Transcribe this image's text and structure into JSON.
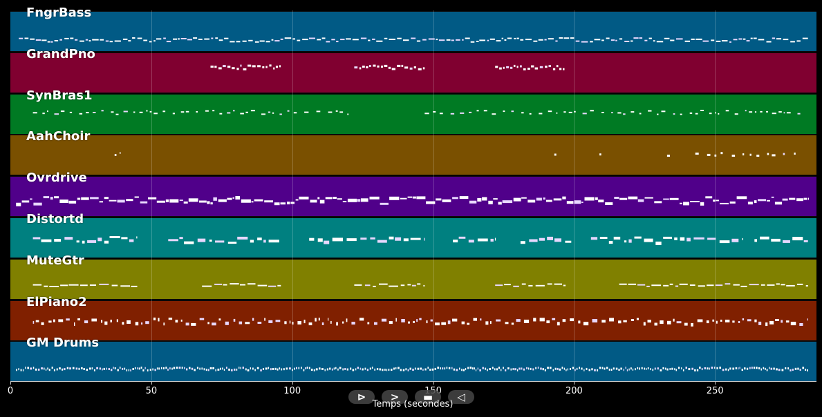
{
  "tracks": [
    {
      "name": "FngrBass",
      "color": "#015a85",
      "density": "bass",
      "pattern": [
        [
          3,
          283
        ]
      ]
    },
    {
      "name": "GrandPno",
      "color": "#800030",
      "density": "piano",
      "pattern": [
        [
          71,
          96
        ],
        [
          122,
          147
        ],
        [
          172,
          197
        ]
      ]
    },
    {
      "name": "SynBras1",
      "color": "#007a23",
      "density": "sparse",
      "pattern": [
        [
          8,
          120
        ],
        [
          147,
          281
        ]
      ]
    },
    {
      "name": "AahChoir",
      "color": "#7a5000",
      "density": "rare",
      "pattern": [
        [
          37,
          39
        ],
        [
          193,
          195
        ],
        [
          209,
          210
        ],
        [
          233,
          234
        ],
        [
          243,
          281
        ]
      ]
    },
    {
      "name": "Ovrdrive",
      "color": "#50008a",
      "density": "dense",
      "pattern": [
        [
          2,
          283
        ]
      ]
    },
    {
      "name": "Distortd",
      "color": "#008080",
      "density": "clusters",
      "pattern": [
        [
          8,
          45
        ],
        [
          56,
          96
        ],
        [
          106,
          147
        ],
        [
          157,
          172
        ],
        [
          181,
          199
        ],
        [
          206,
          260
        ],
        [
          264,
          283
        ]
      ]
    },
    {
      "name": "MuteGtr",
      "color": "#808000",
      "density": "riffs",
      "pattern": [
        [
          8,
          45
        ],
        [
          68,
          96
        ],
        [
          122,
          147
        ],
        [
          172,
          197
        ],
        [
          216,
          283
        ]
      ]
    },
    {
      "name": "ElPiano2",
      "color": "#802000",
      "density": "piano2",
      "pattern": [
        [
          8,
          283
        ]
      ]
    },
    {
      "name": "GM Drums",
      "color": "#015a85",
      "density": "drums",
      "pattern": [
        [
          2,
          283
        ]
      ]
    }
  ],
  "axis": {
    "xlabel": "Temps (secondes)",
    "ticks": [
      "0",
      "50",
      "100",
      "150",
      "200",
      "250"
    ],
    "tick_values": [
      0,
      50,
      100,
      150,
      200,
      250
    ],
    "xmin": 0,
    "xmax": 286
  },
  "controls": [
    {
      "name": "play-forward-button",
      "glyph": "⊳"
    },
    {
      "name": "next-button",
      "glyph": ">"
    },
    {
      "name": "stop-button",
      "glyph": "▬"
    },
    {
      "name": "play-back-button",
      "glyph": "◁"
    }
  ]
}
